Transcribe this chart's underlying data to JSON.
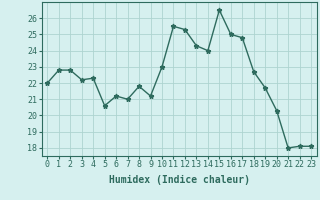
{
  "x": [
    0,
    1,
    2,
    3,
    4,
    5,
    6,
    7,
    8,
    9,
    10,
    11,
    12,
    13,
    14,
    15,
    16,
    17,
    18,
    19,
    20,
    21,
    22,
    23
  ],
  "y": [
    22.0,
    22.8,
    22.8,
    22.2,
    22.3,
    20.6,
    21.2,
    21.0,
    21.8,
    21.2,
    23.0,
    25.5,
    25.3,
    24.3,
    24.0,
    26.5,
    25.0,
    24.8,
    22.7,
    21.7,
    20.3,
    18.0,
    18.1,
    18.1
  ],
  "line_color": "#2e6b5e",
  "marker": "*",
  "marker_size": 3.5,
  "bg_color": "#d6f0ef",
  "grid_color": "#aed4d0",
  "xlabel": "Humidex (Indice chaleur)",
  "ylabel_ticks": [
    18,
    19,
    20,
    21,
    22,
    23,
    24,
    25,
    26
  ],
  "xlim": [
    -0.5,
    23.5
  ],
  "ylim": [
    17.5,
    27.0
  ],
  "xlabel_fontsize": 7,
  "tick_fontsize": 6,
  "line_width": 1.0
}
